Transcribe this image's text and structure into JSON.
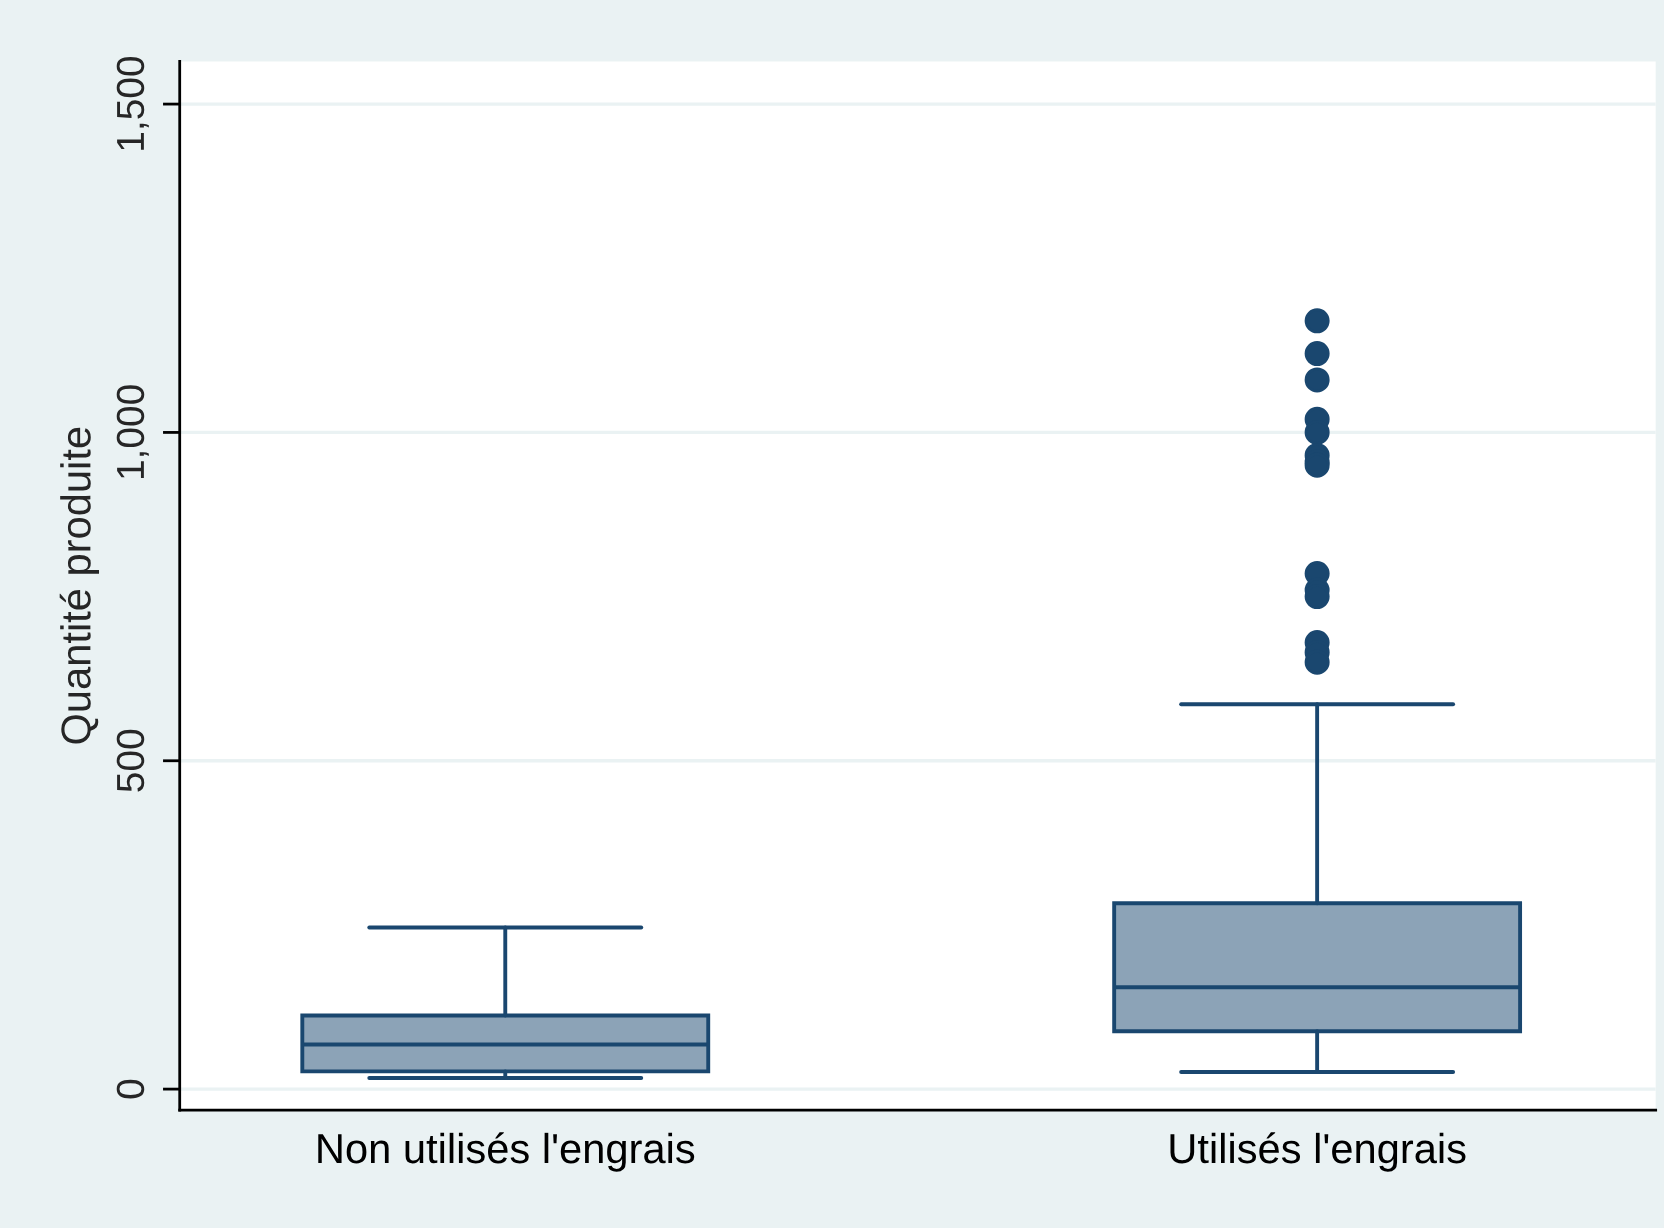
{
  "chart_data": {
    "type": "box",
    "ylabel": "Quantité produite",
    "categories": [
      "Non utilisés l'engrais",
      "Utilisés l'engrais"
    ],
    "color": "#1a476f",
    "boxes": [
      {
        "low": 17,
        "q1": 27,
        "median": 68,
        "q3": 112,
        "high": 246
      },
      {
        "low": 26,
        "q1": 88,
        "median": 155,
        "q3": 283,
        "high": 586,
        "outliers": [
          1170,
          1120,
          1080,
          1020,
          1000,
          965,
          955,
          950,
          785,
          760,
          750,
          680,
          665,
          650
        ]
      }
    ],
    "ylim": [
      -32,
      1565
    ],
    "yticks": [
      0,
      500,
      {
        "value": 1000,
        "label": "1,000"
      },
      {
        "value": 1500,
        "label": "1,500"
      }
    ],
    "grid": "y"
  }
}
